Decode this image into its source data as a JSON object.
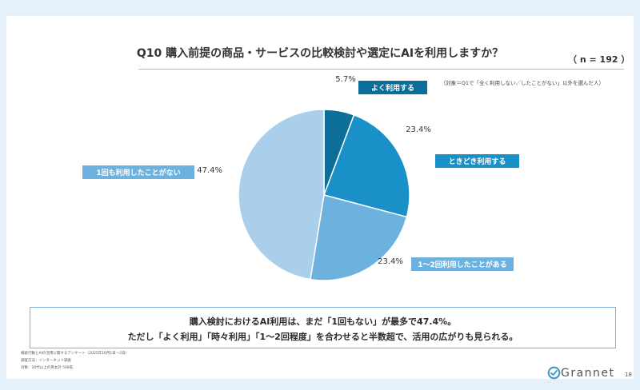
{
  "header": {
    "title": "Q10 購入前提の商品・サービスの比較検討や選定にAIを利用しますか？",
    "n_label": "（ n = 192 ）",
    "target_note": "（対象＝Q1で「全く利用しない／したことがない」以外を選んだ人）"
  },
  "chart_data": {
    "type": "pie",
    "categories": [
      "よく利用する",
      "ときどき利用する",
      "1〜2回利用したことがある",
      "1回も利用したことがない"
    ],
    "values": [
      5.7,
      23.4,
      23.4,
      47.4
    ],
    "value_labels": [
      "5.7%",
      "23.4%",
      "23.4%",
      "47.4%"
    ],
    "colors": [
      "#0c6f9a",
      "#1a90c9",
      "#6db2df",
      "#a9cfea"
    ],
    "label_tag_colors": [
      "#0c6f9a",
      "#1a90c9",
      "#6db2df",
      "#6db2df"
    ],
    "start_angle_deg": 0,
    "direction": "clockwise"
  },
  "summary": {
    "line1": "購入検討におけるAI利用は、まだ「1回もない」が最多で47.4%。",
    "line2": "ただし「よく利用」「時々利用」「1〜2回程度」を合わせると半数超で、活用の広がりも見られる。"
  },
  "footer": {
    "lines": [
      "検索行動とAIの活用に関するアンケート（2025年10月1日〜2日）",
      "調査方法：インターネット調査",
      "対象：20代以上の男女計 508名"
    ],
    "logo_text": "Grannet",
    "page_number": "18"
  }
}
